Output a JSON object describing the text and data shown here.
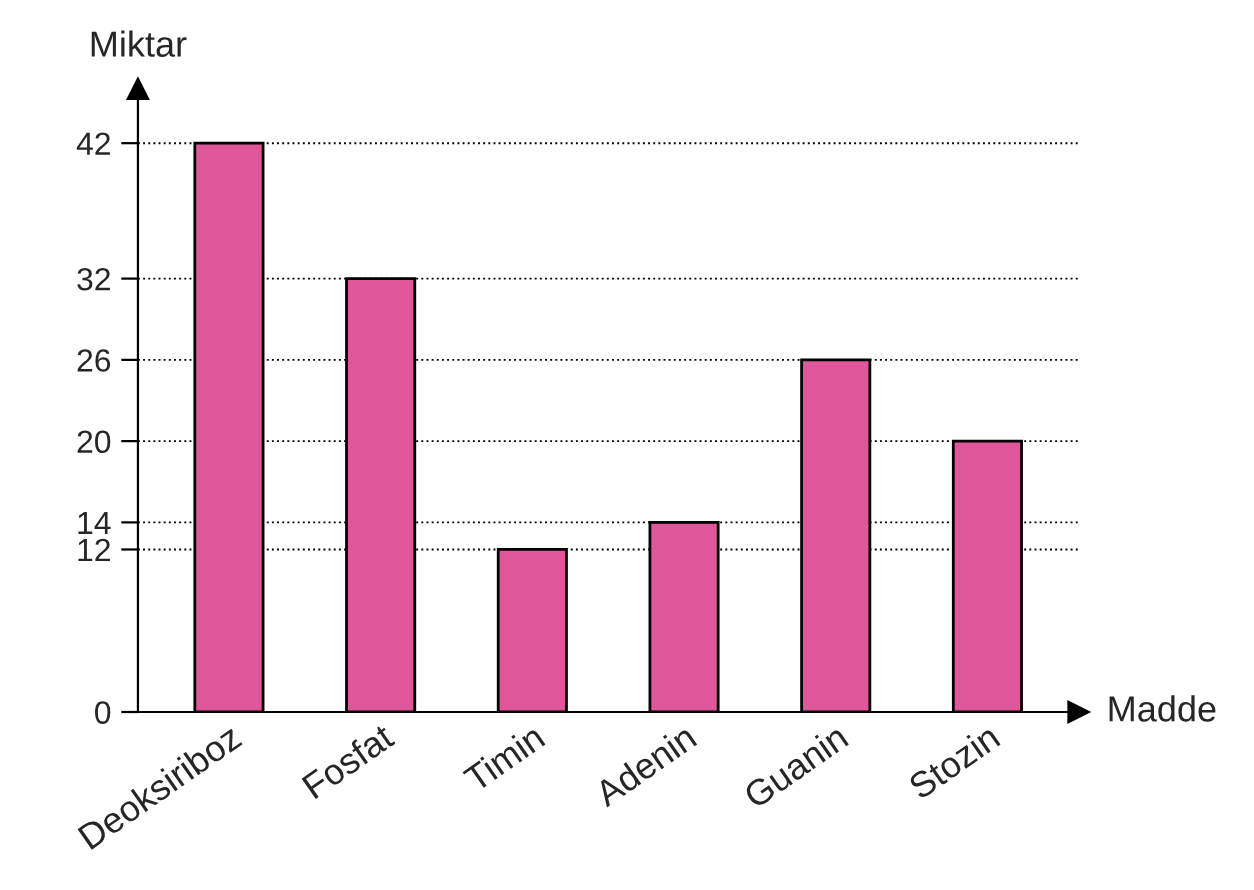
{
  "chart_data": {
    "type": "bar",
    "xlabel": "Madde",
    "ylabel": "Miktar",
    "categories": [
      "Deoksiriboz",
      "Fosfat",
      "Timin",
      "Adenin",
      "Guanin",
      "Stozin"
    ],
    "values": [
      42,
      32,
      12,
      14,
      26,
      20
    ],
    "color": "#e0569a",
    "ylim": [
      0,
      46
    ],
    "yticks": [
      0,
      12,
      14,
      20,
      26,
      32,
      42
    ],
    "grid": "y",
    "line_style": "dotted"
  }
}
